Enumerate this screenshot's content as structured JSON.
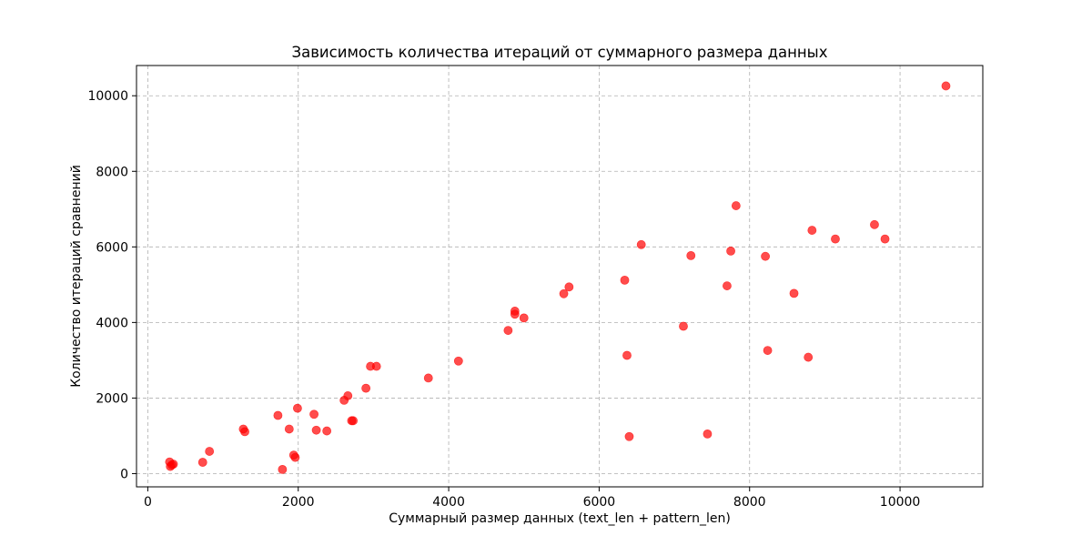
{
  "chart_data": {
    "type": "scatter",
    "title": "Зависимость количества итераций от суммарного размера данных",
    "xlabel": "Суммарный размер данных (text_len + pattern_len)",
    "ylabel": "Количество итераций сравнений",
    "xlim": [
      -150,
      11100
    ],
    "ylim": [
      -350,
      10800
    ],
    "xticks": [
      0,
      2000,
      4000,
      6000,
      8000,
      10000
    ],
    "yticks": [
      0,
      2000,
      4000,
      6000,
      8000,
      10000
    ],
    "xtick_labels": [
      "0",
      "2000",
      "4000",
      "6000",
      "8000",
      "10000"
    ],
    "ytick_labels": [
      "0",
      "2000",
      "4000",
      "6000",
      "8000",
      "10000"
    ],
    "grid": true,
    "marker_color": "#ff0000",
    "marker_alpha": 0.7,
    "points": [
      {
        "x": 290,
        "y": 310
      },
      {
        "x": 300,
        "y": 190
      },
      {
        "x": 320,
        "y": 230
      },
      {
        "x": 340,
        "y": 250
      },
      {
        "x": 730,
        "y": 300
      },
      {
        "x": 820,
        "y": 590
      },
      {
        "x": 1270,
        "y": 1180
      },
      {
        "x": 1290,
        "y": 1110
      },
      {
        "x": 1730,
        "y": 1540
      },
      {
        "x": 1790,
        "y": 110
      },
      {
        "x": 1880,
        "y": 1180
      },
      {
        "x": 1940,
        "y": 490
      },
      {
        "x": 1960,
        "y": 430
      },
      {
        "x": 1990,
        "y": 1730
      },
      {
        "x": 2210,
        "y": 1570
      },
      {
        "x": 2240,
        "y": 1150
      },
      {
        "x": 2380,
        "y": 1130
      },
      {
        "x": 2610,
        "y": 1940
      },
      {
        "x": 2660,
        "y": 2060
      },
      {
        "x": 2710,
        "y": 1400
      },
      {
        "x": 2730,
        "y": 1400
      },
      {
        "x": 2900,
        "y": 2260
      },
      {
        "x": 2960,
        "y": 2840
      },
      {
        "x": 3040,
        "y": 2840
      },
      {
        "x": 3730,
        "y": 2530
      },
      {
        "x": 4130,
        "y": 2980
      },
      {
        "x": 4790,
        "y": 3790
      },
      {
        "x": 4880,
        "y": 4300
      },
      {
        "x": 4880,
        "y": 4220
      },
      {
        "x": 5000,
        "y": 4120
      },
      {
        "x": 5530,
        "y": 4760
      },
      {
        "x": 5600,
        "y": 4940
      },
      {
        "x": 6340,
        "y": 5120
      },
      {
        "x": 6370,
        "y": 3130
      },
      {
        "x": 6400,
        "y": 980
      },
      {
        "x": 6560,
        "y": 6060
      },
      {
        "x": 7120,
        "y": 3900
      },
      {
        "x": 7220,
        "y": 5770
      },
      {
        "x": 7440,
        "y": 1050
      },
      {
        "x": 7700,
        "y": 4970
      },
      {
        "x": 7750,
        "y": 5890
      },
      {
        "x": 7820,
        "y": 7090
      },
      {
        "x": 8210,
        "y": 5750
      },
      {
        "x": 8240,
        "y": 3260
      },
      {
        "x": 8590,
        "y": 4770
      },
      {
        "x": 8780,
        "y": 3080
      },
      {
        "x": 8830,
        "y": 6440
      },
      {
        "x": 9140,
        "y": 6210
      },
      {
        "x": 9660,
        "y": 6590
      },
      {
        "x": 9800,
        "y": 6210
      },
      {
        "x": 10610,
        "y": 10260
      }
    ]
  }
}
